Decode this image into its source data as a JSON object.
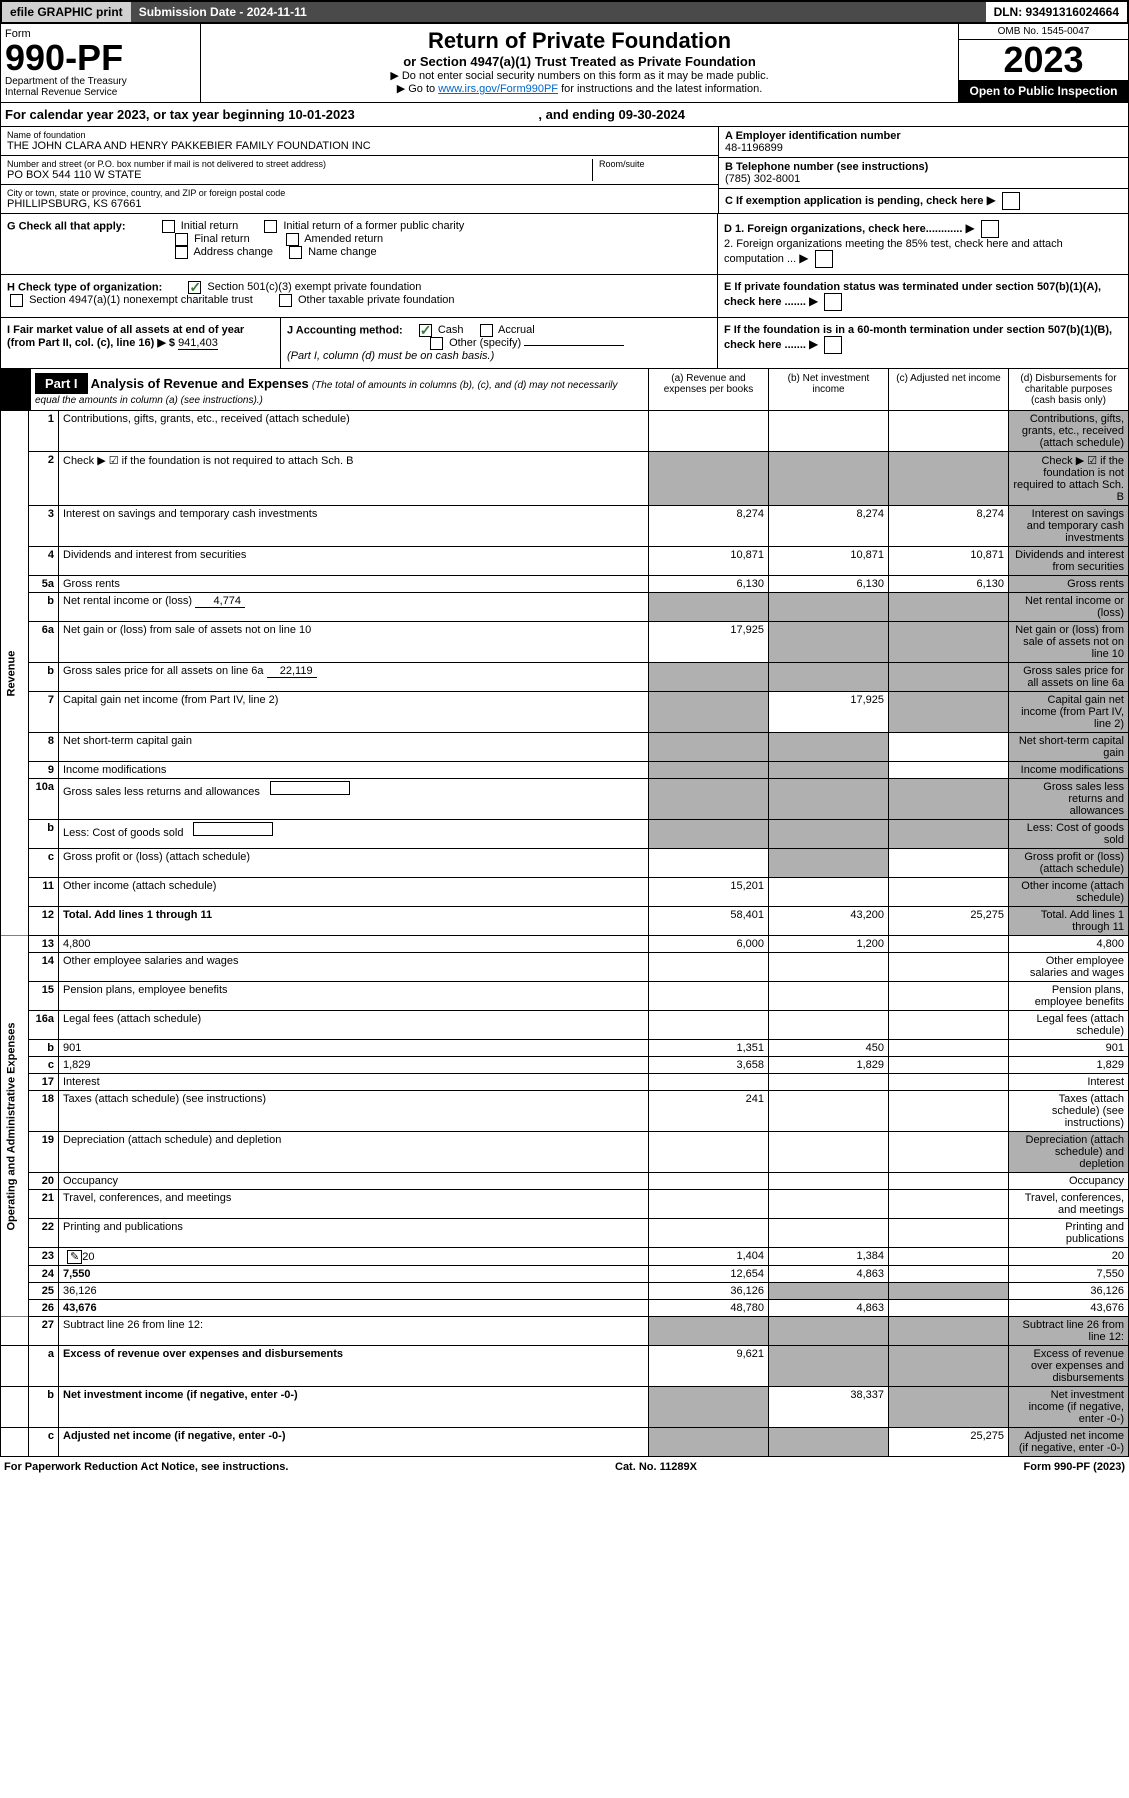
{
  "topbar": {
    "efile": "efile GRAPHIC print",
    "submission": "Submission Date - 2024-11-11",
    "dln": "DLN: 93491316024664"
  },
  "header": {
    "form_label": "Form",
    "form_num": "990-PF",
    "dept": "Department of the Treasury",
    "irs": "Internal Revenue Service",
    "title": "Return of Private Foundation",
    "subtitle": "or Section 4947(a)(1) Trust Treated as Private Foundation",
    "instr1": "▶ Do not enter social security numbers on this form as it may be made public.",
    "instr2_pre": "▶ Go to ",
    "instr2_link": "www.irs.gov/Form990PF",
    "instr2_post": " for instructions and the latest information.",
    "omb": "OMB No. 1545-0047",
    "year": "2023",
    "open": "Open to Public Inspection"
  },
  "calyear": {
    "text": "For calendar year 2023, or tax year beginning 10-01-2023",
    "ending": ", and ending 09-30-2024"
  },
  "info": {
    "name_label": "Name of foundation",
    "name": "THE JOHN CLARA AND HENRY PAKKEBIER FAMILY FOUNDATION INC",
    "addr_label": "Number and street (or P.O. box number if mail is not delivered to street address)",
    "addr": "PO BOX 544 110 W STATE",
    "room_label": "Room/suite",
    "city_label": "City or town, state or province, country, and ZIP or foreign postal code",
    "city": "PHILLIPSBURG, KS  67661",
    "ein_label": "A Employer identification number",
    "ein": "48-1196899",
    "tel_label": "B Telephone number (see instructions)",
    "tel": "(785) 302-8001",
    "c_label": "C If exemption application is pending, check here",
    "g_label": "G Check all that apply:",
    "g_opts": [
      "Initial return",
      "Initial return of a former public charity",
      "Final return",
      "Amended return",
      "Address change",
      "Name change"
    ],
    "d1": "D 1. Foreign organizations, check here............",
    "d2": "2. Foreign organizations meeting the 85% test, check here and attach computation ...",
    "h_label": "H Check type of organization:",
    "h1": "Section 501(c)(3) exempt private foundation",
    "h2": "Section 4947(a)(1) nonexempt charitable trust",
    "h3": "Other taxable private foundation",
    "e_label": "E  If private foundation status was terminated under section 507(b)(1)(A), check here .......",
    "i_label": "I Fair market value of all assets at end of year (from Part II, col. (c), line 16) ▶ $",
    "i_val": "941,403",
    "j_label": "J Accounting method:",
    "j_cash": "Cash",
    "j_accrual": "Accrual",
    "j_other": "Other (specify)",
    "j_note": "(Part I, column (d) must be on cash basis.)",
    "f_label": "F  If the foundation is in a 60-month termination under section 507(b)(1)(B), check here ......."
  },
  "part1": {
    "label": "Part I",
    "title": "Analysis of Revenue and Expenses",
    "note": "(The total of amounts in columns (b), (c), and (d) may not necessarily equal the amounts in column (a) (see instructions).)",
    "cols": [
      "(a)   Revenue and expenses per books",
      "(b)  Net investment income",
      "(c)  Adjusted net income",
      "(d)  Disbursements for charitable purposes (cash basis only)"
    ]
  },
  "sections": {
    "revenue": "Revenue",
    "expenses": "Operating and Administrative Expenses"
  },
  "rows": [
    {
      "n": "1",
      "d": "Contributions, gifts, grants, etc., received (attach schedule)",
      "a": "",
      "b": "",
      "c": "",
      "shadeD": true
    },
    {
      "n": "2",
      "d": "Check ▶ ☑ if the foundation is not required to attach Sch. B",
      "dotsOnly": true,
      "shadeAll": true
    },
    {
      "n": "3",
      "d": "Interest on savings and temporary cash investments",
      "a": "8,274",
      "b": "8,274",
      "c": "8,274",
      "shadeD": true
    },
    {
      "n": "4",
      "d": "Dividends and interest from securities",
      "a": "10,871",
      "b": "10,871",
      "c": "10,871",
      "shadeD": true
    },
    {
      "n": "5a",
      "d": "Gross rents",
      "a": "6,130",
      "b": "6,130",
      "c": "6,130",
      "shadeD": true
    },
    {
      "n": "b",
      "d": "Net rental income or (loss)",
      "inline": "4,774",
      "shadeAll": true
    },
    {
      "n": "6a",
      "d": "Net gain or (loss) from sale of assets not on line 10",
      "a": "17,925",
      "shadeBCD": true
    },
    {
      "n": "b",
      "d": "Gross sales price for all assets on line 6a",
      "inline": "22,119",
      "shadeAll": true
    },
    {
      "n": "7",
      "d": "Capital gain net income (from Part IV, line 2)",
      "shadeA": true,
      "b": "17,925",
      "shadeCD": true
    },
    {
      "n": "8",
      "d": "Net short-term capital gain",
      "shadeAB": true,
      "shadeD": true
    },
    {
      "n": "9",
      "d": "Income modifications",
      "shadeAB": true,
      "shadeD": true
    },
    {
      "n": "10a",
      "d": "Gross sales less returns and allowances",
      "inlineBox": true,
      "shadeAll": true
    },
    {
      "n": "b",
      "d": "Less: Cost of goods sold",
      "inlineBox": true,
      "shadeAll": true
    },
    {
      "n": "c",
      "d": "Gross profit or (loss) (attach schedule)",
      "shadeB": true,
      "shadeD": true
    },
    {
      "n": "11",
      "d": "Other income (attach schedule)",
      "a": "15,201",
      "shadeD": true
    },
    {
      "n": "12",
      "d": "Total. Add lines 1 through 11",
      "bold": true,
      "a": "58,401",
      "b": "43,200",
      "c": "25,275",
      "shadeD": true
    }
  ],
  "exprows": [
    {
      "n": "13",
      "d": "4,800",
      "a": "6,000",
      "b": "1,200"
    },
    {
      "n": "14",
      "d": "Other employee salaries and wages"
    },
    {
      "n": "15",
      "d": "Pension plans, employee benefits"
    },
    {
      "n": "16a",
      "d": "Legal fees (attach schedule)"
    },
    {
      "n": "b",
      "d": "901",
      "a": "1,351",
      "b": "450"
    },
    {
      "n": "c",
      "d": "1,829",
      "a": "3,658",
      "b": "1,829"
    },
    {
      "n": "17",
      "d": "Interest"
    },
    {
      "n": "18",
      "d": "Taxes (attach schedule) (see instructions)",
      "a": "241"
    },
    {
      "n": "19",
      "d": "Depreciation (attach schedule) and depletion",
      "shadeD": true
    },
    {
      "n": "20",
      "d": "Occupancy"
    },
    {
      "n": "21",
      "d": "Travel, conferences, and meetings"
    },
    {
      "n": "22",
      "d": "Printing and publications"
    },
    {
      "n": "23",
      "d": "20",
      "icon": true,
      "a": "1,404",
      "b": "1,384"
    },
    {
      "n": "24",
      "d": "7,550",
      "bold": true,
      "a": "12,654",
      "b": "4,863"
    },
    {
      "n": "25",
      "d": "36,126",
      "a": "36,126",
      "shadeBC": true
    },
    {
      "n": "26",
      "d": "43,676",
      "bold": true,
      "a": "48,780",
      "b": "4,863"
    }
  ],
  "bottomrows": [
    {
      "n": "27",
      "d": "Subtract line 26 from line 12:",
      "shadeAll": true
    },
    {
      "n": "a",
      "d": "Excess of revenue over expenses and disbursements",
      "bold": true,
      "a": "9,621",
      "shadeBCD": true
    },
    {
      "n": "b",
      "d": "Net investment income (if negative, enter -0-)",
      "bold": true,
      "shadeA": true,
      "b": "38,337",
      "shadeCD": true
    },
    {
      "n": "c",
      "d": "Adjusted net income (if negative, enter -0-)",
      "bold": true,
      "shadeAB": true,
      "c": "25,275",
      "shadeD": true
    }
  ],
  "footer": {
    "left": "For Paperwork Reduction Act Notice, see instructions.",
    "mid": "Cat. No. 11289X",
    "right": "Form 990-PF (2023)"
  }
}
